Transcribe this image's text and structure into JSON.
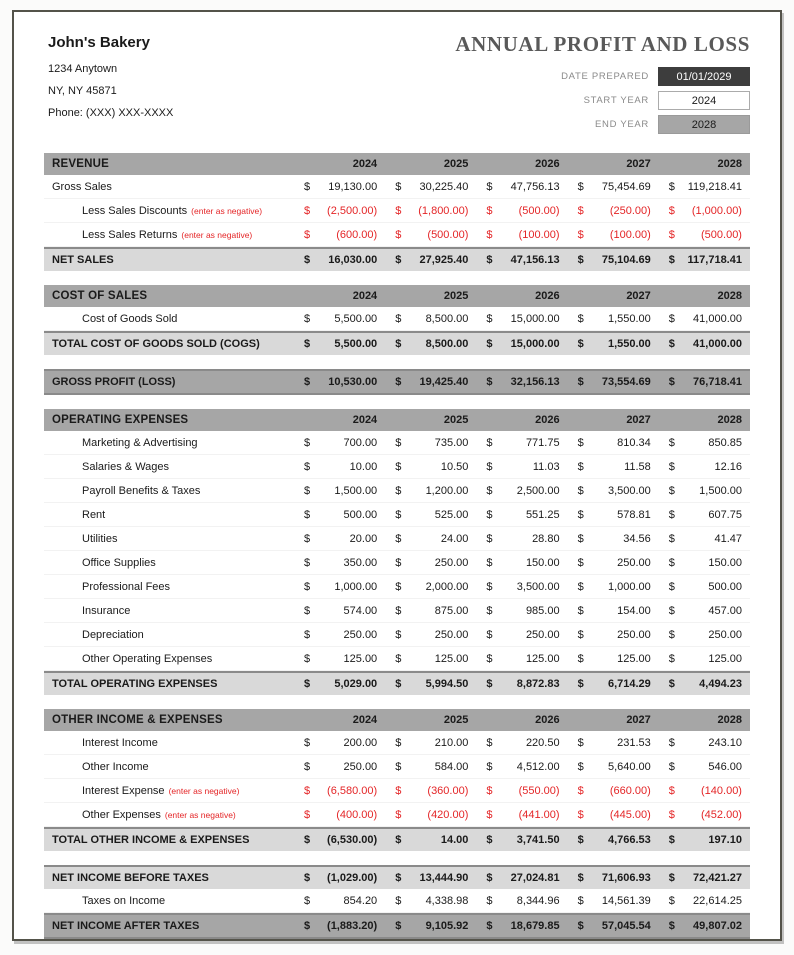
{
  "company": {
    "name": "John's Bakery",
    "address_line1": "1234 Anytown",
    "address_line2": "NY, NY 45871",
    "phone": "Phone: (XXX) XXX-XXXX"
  },
  "title": "ANNUAL PROFIT AND LOSS",
  "meta": {
    "date_prepared_label": "DATE PREPARED",
    "date_prepared_value": "01/01/2029",
    "start_year_label": "START YEAR",
    "start_year_value": "2024",
    "end_year_label": "END YEAR",
    "end_year_value": "2028"
  },
  "colors": {
    "frame": "#54534a",
    "section_header_bg": "#a6a6a6",
    "total_row_bg": "#d9d9d9",
    "negative_red": "#e42527",
    "title_gray": "#595959"
  },
  "years": [
    "2024",
    "2025",
    "2026",
    "2027",
    "2028"
  ],
  "blocks": [
    {
      "header": "REVENUE",
      "rows": [
        {
          "label": "Gross Sales",
          "type": "data",
          "indent": 0,
          "values": [
            "19,130.00",
            "30,225.40",
            "47,756.13",
            "75,454.69",
            "119,218.41"
          ]
        },
        {
          "label": "Less Sales Discounts",
          "note": "(enter as negative)",
          "type": "negative",
          "indent": 1,
          "values": [
            "(2,500.00)",
            "(1,800.00)",
            "(500.00)",
            "(250.00)",
            "(1,000.00)"
          ]
        },
        {
          "label": "Less Sales Returns",
          "note": "(enter as negative)",
          "type": "negative",
          "indent": 1,
          "values": [
            "(600.00)",
            "(500.00)",
            "(100.00)",
            "(100.00)",
            "(500.00)"
          ]
        },
        {
          "label": "NET SALES",
          "type": "total",
          "indent": 0,
          "values": [
            "16,030.00",
            "27,925.40",
            "47,156.13",
            "75,104.69",
            "117,718.41"
          ]
        }
      ]
    },
    {
      "header": "COST OF SALES",
      "rows": [
        {
          "label": "Cost of Goods Sold",
          "type": "data",
          "indent": 1,
          "values": [
            "5,500.00",
            "8,500.00",
            "15,000.00",
            "1,550.00",
            "41,000.00"
          ]
        },
        {
          "label": "TOTAL COST OF GOODS SOLD (COGS)",
          "type": "total",
          "indent": 0,
          "values": [
            "5,500.00",
            "8,500.00",
            "15,000.00",
            "1,550.00",
            "41,000.00"
          ]
        }
      ]
    },
    {
      "header": null,
      "rows": [
        {
          "label": "GROSS PROFIT (LOSS)",
          "type": "grand",
          "indent": 0,
          "values": [
            "10,530.00",
            "19,425.40",
            "32,156.13",
            "73,554.69",
            "76,718.41"
          ]
        }
      ]
    },
    {
      "header": "OPERATING EXPENSES",
      "rows": [
        {
          "label": "Marketing & Advertising",
          "type": "data",
          "indent": 1,
          "values": [
            "700.00",
            "735.00",
            "771.75",
            "810.34",
            "850.85"
          ]
        },
        {
          "label": "Salaries & Wages",
          "type": "data",
          "indent": 1,
          "values": [
            "10.00",
            "10.50",
            "11.03",
            "11.58",
            "12.16"
          ]
        },
        {
          "label": "Payroll Benefits & Taxes",
          "type": "data",
          "indent": 1,
          "values": [
            "1,500.00",
            "1,200.00",
            "2,500.00",
            "3,500.00",
            "1,500.00"
          ]
        },
        {
          "label": "Rent",
          "type": "data",
          "indent": 1,
          "values": [
            "500.00",
            "525.00",
            "551.25",
            "578.81",
            "607.75"
          ]
        },
        {
          "label": "Utilities",
          "type": "data",
          "indent": 1,
          "values": [
            "20.00",
            "24.00",
            "28.80",
            "34.56",
            "41.47"
          ]
        },
        {
          "label": "Office Supplies",
          "type": "data",
          "indent": 1,
          "values": [
            "350.00",
            "250.00",
            "150.00",
            "250.00",
            "150.00"
          ]
        },
        {
          "label": "Professional Fees",
          "type": "data",
          "indent": 1,
          "values": [
            "1,000.00",
            "2,000.00",
            "3,500.00",
            "1,000.00",
            "500.00"
          ]
        },
        {
          "label": "Insurance",
          "type": "data",
          "indent": 1,
          "values": [
            "574.00",
            "875.00",
            "985.00",
            "154.00",
            "457.00"
          ]
        },
        {
          "label": "Depreciation",
          "type": "data",
          "indent": 1,
          "values": [
            "250.00",
            "250.00",
            "250.00",
            "250.00",
            "250.00"
          ]
        },
        {
          "label": "Other Operating Expenses",
          "type": "data",
          "indent": 1,
          "values": [
            "125.00",
            "125.00",
            "125.00",
            "125.00",
            "125.00"
          ]
        },
        {
          "label": "TOTAL OPERATING EXPENSES",
          "type": "total",
          "indent": 0,
          "values": [
            "5,029.00",
            "5,994.50",
            "8,872.83",
            "6,714.29",
            "4,494.23"
          ]
        }
      ]
    },
    {
      "header": "OTHER INCOME & EXPENSES",
      "rows": [
        {
          "label": "Interest Income",
          "type": "data",
          "indent": 1,
          "values": [
            "200.00",
            "210.00",
            "220.50",
            "231.53",
            "243.10"
          ]
        },
        {
          "label": "Other Income",
          "type": "data",
          "indent": 1,
          "values": [
            "250.00",
            "584.00",
            "4,512.00",
            "5,640.00",
            "546.00"
          ]
        },
        {
          "label": "Interest Expense",
          "note": "(enter as negative)",
          "type": "negative",
          "indent": 1,
          "values": [
            "(6,580.00)",
            "(360.00)",
            "(550.00)",
            "(660.00)",
            "(140.00)"
          ]
        },
        {
          "label": "Other Expenses",
          "note": "(enter as negative)",
          "type": "negative",
          "indent": 1,
          "values": [
            "(400.00)",
            "(420.00)",
            "(441.00)",
            "(445.00)",
            "(452.00)"
          ]
        },
        {
          "label": "TOTAL OTHER INCOME & EXPENSES",
          "type": "total",
          "indent": 0,
          "values": [
            "(6,530.00)",
            "14.00",
            "3,741.50",
            "4,766.53",
            "197.10"
          ]
        }
      ]
    },
    {
      "header": null,
      "rows": [
        {
          "label": "NET INCOME BEFORE TAXES",
          "type": "total",
          "indent": 0,
          "values": [
            "(1,029.00)",
            "13,444.90",
            "27,024.81",
            "71,606.93",
            "72,421.27"
          ]
        },
        {
          "label": "Taxes on Income",
          "type": "data",
          "indent": 1,
          "values": [
            "854.20",
            "4,338.98",
            "8,344.96",
            "14,561.39",
            "22,614.25"
          ]
        },
        {
          "label": "NET INCOME AFTER TAXES",
          "type": "grand",
          "indent": 0,
          "values": [
            "(1,883.20)",
            "9,105.92",
            "18,679.85",
            "57,045.54",
            "49,807.02"
          ]
        }
      ]
    }
  ]
}
